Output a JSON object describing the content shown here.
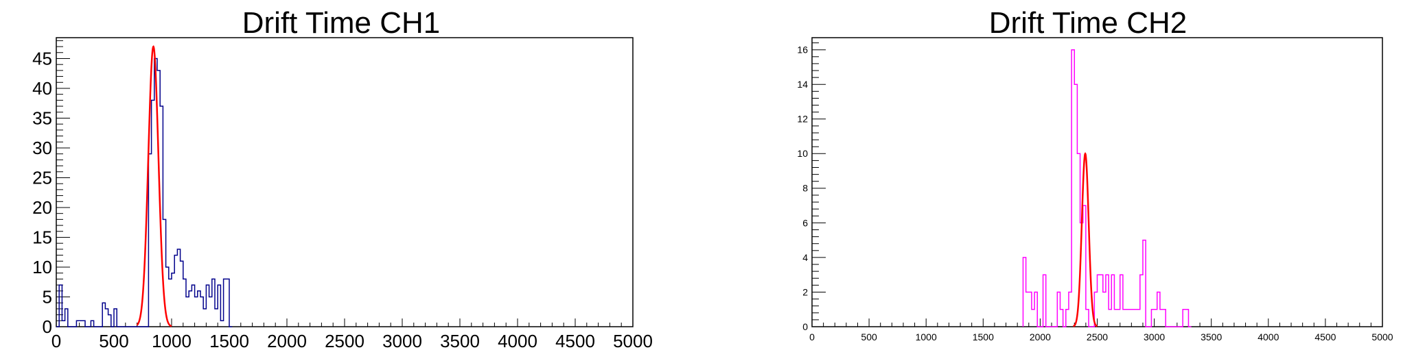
{
  "chart_data": [
    {
      "type": "bar",
      "title": "Drift Time CH1",
      "xlabel": "",
      "ylabel": "",
      "xlim": [
        0,
        5000
      ],
      "ylim": [
        0,
        48.5
      ],
      "x_ticks": [
        0,
        500,
        1000,
        1500,
        2000,
        2500,
        3000,
        3500,
        4000,
        4500,
        5000
      ],
      "y_ticks": [
        0,
        5,
        10,
        15,
        20,
        25,
        30,
        35,
        40,
        45
      ],
      "hist_color": "#00008b",
      "fit_color": "#ff0000",
      "bin_width": 25,
      "bins_from": 0,
      "counts": [
        0,
        7,
        1,
        3,
        0,
        0,
        0,
        1,
        1,
        1,
        0,
        0,
        1,
        0,
        0,
        0,
        4,
        3,
        2,
        0,
        3,
        0,
        0,
        0,
        0,
        0,
        0,
        0,
        0,
        0,
        0,
        0,
        29,
        38,
        45,
        43,
        37,
        18,
        10,
        8,
        9,
        12,
        13,
        11,
        8,
        5,
        6,
        7,
        5,
        6,
        5,
        3,
        7,
        5,
        8,
        3,
        7,
        1,
        8,
        8,
        0
      ],
      "fit": {
        "amplitude": 47,
        "mean": 842,
        "sigma": 44,
        "range": [
          700,
          1000
        ]
      }
    },
    {
      "type": "bar",
      "title": "Drift Time CH2",
      "xlabel": "",
      "ylabel": "",
      "xlim": [
        0,
        5000
      ],
      "ylim": [
        0,
        16.7
      ],
      "x_ticks": [
        0,
        500,
        1000,
        1500,
        2000,
        2500,
        3000,
        3500,
        4000,
        4500,
        5000
      ],
      "y_ticks": [
        0,
        2,
        4,
        6,
        8,
        10,
        12,
        14,
        16
      ],
      "hist_color": "#ff00ff",
      "fit_color": "#ff0000",
      "bin_width": 25,
      "bins_from": 1850,
      "counts": [
        4,
        2,
        2,
        1,
        2,
        0,
        0,
        3,
        0,
        0,
        0,
        0,
        2,
        1,
        0,
        1,
        2,
        16,
        14,
        10,
        6,
        7,
        1,
        0,
        0,
        2,
        3,
        3,
        2,
        3,
        1,
        3,
        1,
        1,
        3,
        1,
        1,
        1,
        1,
        1,
        1,
        3,
        5,
        0,
        0,
        1,
        1,
        2,
        1,
        1,
        0,
        0,
        0,
        0,
        0,
        0,
        1,
        1,
        0
      ],
      "fit": {
        "amplitude": 10,
        "mean": 2395,
        "sigma": 30,
        "range": [
          2290,
          2500
        ]
      }
    }
  ]
}
